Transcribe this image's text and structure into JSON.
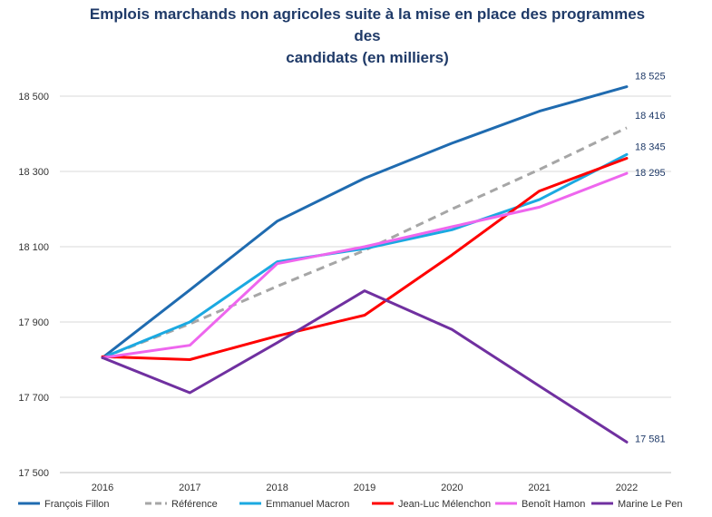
{
  "chart_data": {
    "type": "line",
    "title": [
      "Emplois marchands non agricoles suite à la mise en place des programmes des",
      "candidats (en milliers)"
    ],
    "x": [
      "2016",
      "2017",
      "2018",
      "2019",
      "2020",
      "2021",
      "2022"
    ],
    "ylim": [
      17500,
      18600
    ],
    "yticks": [
      17500,
      17700,
      17900,
      18100,
      18300,
      18500
    ],
    "ytick_labels": [
      "17 500",
      "17 700",
      "17 900",
      "18 100",
      "18 300",
      "18 500"
    ],
    "grid": true,
    "legend_position": "bottom",
    "series": [
      {
        "name": "François Fillon",
        "color": "#1f6bb0",
        "dashed": false,
        "values": [
          17805,
          17985,
          18168,
          18282,
          18375,
          18460,
          18525
        ],
        "end_label": "18 525"
      },
      {
        "name": "Référence",
        "color": "#a6a6a6",
        "dashed": true,
        "values": [
          17805,
          17895,
          17995,
          18090,
          18200,
          18305,
          18416
        ],
        "end_label": "18 416"
      },
      {
        "name": "Emmanuel Macron",
        "color": "#1ba9e1",
        "dashed": false,
        "values": [
          17805,
          17900,
          18060,
          18095,
          18145,
          18225,
          18345
        ],
        "end_label": "18 345"
      },
      {
        "name": "Jean-Luc Mélenchon",
        "color": "#ff0000",
        "dashed": false,
        "values": [
          17808,
          17800,
          17863,
          17918,
          18078,
          18248,
          18335
        ],
        "end_label": ""
      },
      {
        "name": "Benoît Hamon",
        "color": "#ee66ee",
        "dashed": false,
        "values": [
          17805,
          17838,
          18055,
          18100,
          18153,
          18205,
          18295
        ],
        "end_label": "18 295"
      },
      {
        "name": "Marine Le Pen",
        "color": "#7030a0",
        "dashed": false,
        "values": [
          17805,
          17712,
          17845,
          17983,
          17880,
          17730,
          17581
        ],
        "end_label": "17 581"
      }
    ]
  }
}
